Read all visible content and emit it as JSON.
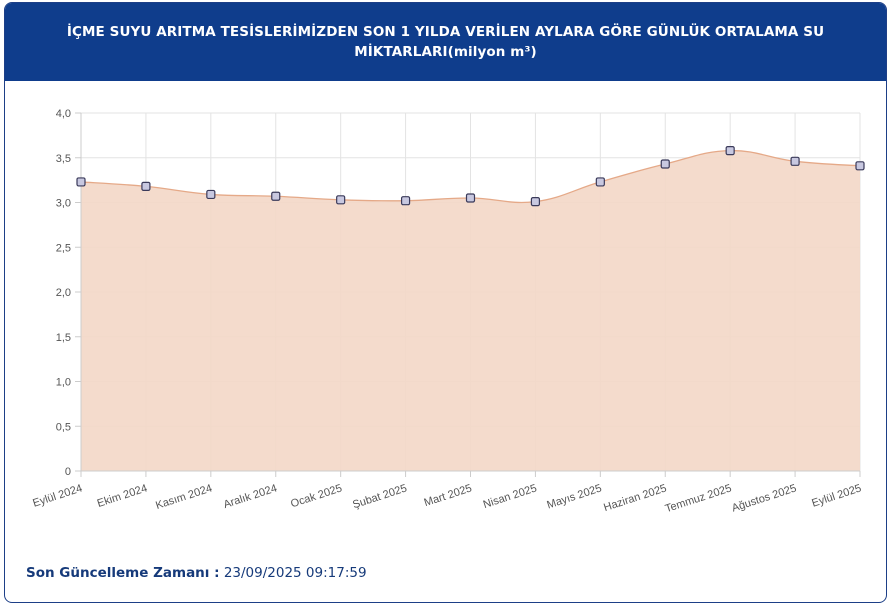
{
  "header": {
    "title": "İÇME SUYU ARITMA TESİSLERİMİZDEN SON 1 YILDA VERİLEN AYLARA GÖRE GÜNLÜK ORTALAMA SU MİKTARLARI(milyon m³)"
  },
  "footer": {
    "label": "Son Güncelleme Zamanı :",
    "value": "23/09/2025 09:17:59"
  },
  "colors": {
    "header_bg": "#0f3d8c",
    "area_fill": "#f3d7c6",
    "line": "#e5a988",
    "point_fill": "#c8c8e0",
    "point_stroke": "#3a3a5a",
    "footer_text": "#163a7a"
  },
  "chart_data": {
    "type": "area",
    "title": "İÇME SUYU ARITMA TESİSLERİMİZDEN SON 1 YILDA VERİLEN AYLARA GÖRE GÜNLÜK ORTALAMA SU MİKTARLARI(milyon m³)",
    "xlabel": "",
    "ylabel": "",
    "categories": [
      "Eylül 2024",
      "Ekim 2024",
      "Kasım 2024",
      "Aralık 2024",
      "Ocak 2025",
      "Şubat 2025",
      "Mart 2025",
      "Nisan 2025",
      "Mayıs 2025",
      "Haziran 2025",
      "Temmuz 2025",
      "Ağustos 2025",
      "Eylül 2025"
    ],
    "values": [
      3.23,
      3.18,
      3.09,
      3.07,
      3.03,
      3.02,
      3.05,
      3.01,
      3.23,
      3.43,
      3.58,
      3.46,
      3.41
    ],
    "ylim": [
      0,
      4
    ],
    "yticks": [
      "0",
      "0,5",
      "1,0",
      "1,5",
      "2,0",
      "2,5",
      "3,0",
      "3,5",
      "4,0"
    ],
    "grid": true,
    "legend": "none"
  }
}
